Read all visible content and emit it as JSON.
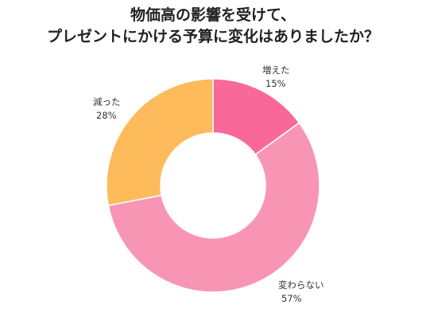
{
  "chart_data": {
    "type": "pie",
    "variant": "donut",
    "title_lines": [
      "物価高の影響を受けて、",
      "プレゼントにかける予算に変化はありましたか？"
    ],
    "slices": [
      {
        "label": "増えた",
        "value": 15,
        "value_label": "15%",
        "color": "#f8699a"
      },
      {
        "label": "変わらない",
        "value": 57,
        "value_label": "57%",
        "color": "#f895b5"
      },
      {
        "label": "減った",
        "value": 28,
        "value_label": "28%",
        "color": "#fdbb5c"
      }
    ],
    "start_angle_deg": 0,
    "direction": "clockwise",
    "legend": "none"
  }
}
